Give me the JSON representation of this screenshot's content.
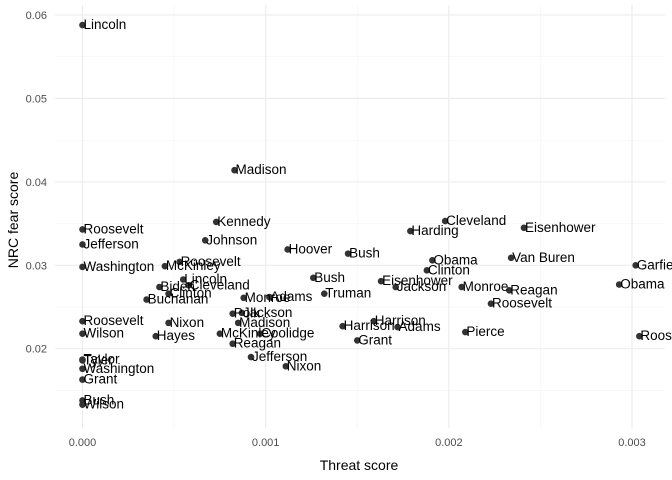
{
  "chart_data": {
    "type": "scatter",
    "xlabel": "Threat score",
    "ylabel": "NRC fear score",
    "xlim": [
      -0.00015,
      0.00318
    ],
    "ylim": [
      0.0105,
      0.0612
    ],
    "x_ticks": [
      0.0,
      0.001,
      0.002,
      0.003
    ],
    "x_tick_labels": [
      "0.000",
      "0.001",
      "0.002",
      "0.003"
    ],
    "y_ticks": [
      0.02,
      0.03,
      0.04,
      0.05,
      0.06
    ],
    "y_tick_labels": [
      "0.02",
      "0.03",
      "0.04",
      "0.05",
      "0.06"
    ],
    "grid": true,
    "point_color": "#333333",
    "points": [
      {
        "label": "Lincoln",
        "x": 0.0,
        "y": 0.0588
      },
      {
        "label": "Roosevelt",
        "x": 0.0,
        "y": 0.0343
      },
      {
        "label": "Jefferson",
        "x": 0.0,
        "y": 0.0325
      },
      {
        "label": "Washington",
        "x": 0.0,
        "y": 0.0298
      },
      {
        "label": "Roosevelt",
        "x": 0.0,
        "y": 0.0233
      },
      {
        "label": "Wilson",
        "x": 0.0,
        "y": 0.0218
      },
      {
        "label": "Taylor",
        "x": 0.0,
        "y": 0.0187
      },
      {
        "label": "Tyler",
        "x": 0.0,
        "y": 0.0186
      },
      {
        "label": "Washington",
        "x": 0.0,
        "y": 0.0176
      },
      {
        "label": "Grant",
        "x": 0.0,
        "y": 0.0163
      },
      {
        "label": "Bush",
        "x": 0.0,
        "y": 0.0138
      },
      {
        "label": "Wilson",
        "x": 0.0,
        "y": 0.0133
      },
      {
        "label": "Buchanan",
        "x": 0.00035,
        "y": 0.0259
      },
      {
        "label": "Biden",
        "x": 0.00042,
        "y": 0.0274
      },
      {
        "label": "Clinton",
        "x": 0.00047,
        "y": 0.0266
      },
      {
        "label": "McKinley",
        "x": 0.00045,
        "y": 0.0299
      },
      {
        "label": "Roosevelt",
        "x": 0.00053,
        "y": 0.0304
      },
      {
        "label": "Lincoln",
        "x": 0.00055,
        "y": 0.0283
      },
      {
        "label": "Cleveland",
        "x": 0.00058,
        "y": 0.0276
      },
      {
        "label": "Hayes",
        "x": 0.0004,
        "y": 0.0215
      },
      {
        "label": "Nixon",
        "x": 0.00047,
        "y": 0.0231
      },
      {
        "label": "Kennedy",
        "x": 0.00073,
        "y": 0.0352
      },
      {
        "label": "Johnson",
        "x": 0.00067,
        "y": 0.033
      },
      {
        "label": "Madison",
        "x": 0.00083,
        "y": 0.0414
      },
      {
        "label": "Monroe",
        "x": 0.00088,
        "y": 0.0261
      },
      {
        "label": "Polk",
        "x": 0.00082,
        "y": 0.0242
      },
      {
        "label": "Jackson",
        "x": 0.00087,
        "y": 0.0243
      },
      {
        "label": "Madison",
        "x": 0.00085,
        "y": 0.0231
      },
      {
        "label": "McKinley",
        "x": 0.00075,
        "y": 0.0218
      },
      {
        "label": "Coolidge",
        "x": 0.00097,
        "y": 0.0218
      },
      {
        "label": "Reagan",
        "x": 0.00082,
        "y": 0.0206
      },
      {
        "label": "Jefferson",
        "x": 0.00092,
        "y": 0.019
      },
      {
        "label": "Adams",
        "x": 0.00102,
        "y": 0.0262
      },
      {
        "label": "Hoover",
        "x": 0.00112,
        "y": 0.0319
      },
      {
        "label": "Bush",
        "x": 0.00126,
        "y": 0.0285
      },
      {
        "label": "Truman",
        "x": 0.00132,
        "y": 0.0266
      },
      {
        "label": "Nixon",
        "x": 0.00111,
        "y": 0.0179
      },
      {
        "label": "Bush",
        "x": 0.00145,
        "y": 0.0314
      },
      {
        "label": "Harrison",
        "x": 0.00142,
        "y": 0.0227
      },
      {
        "label": "Grant",
        "x": 0.0015,
        "y": 0.021
      },
      {
        "label": "Harrison",
        "x": 0.00159,
        "y": 0.0233
      },
      {
        "label": "Adams",
        "x": 0.00172,
        "y": 0.0226
      },
      {
        "label": "Eisenhower",
        "x": 0.00163,
        "y": 0.0281
      },
      {
        "label": "Jackson",
        "x": 0.00171,
        "y": 0.0274
      },
      {
        "label": "Harding",
        "x": 0.00179,
        "y": 0.0341
      },
      {
        "label": "Cleveland",
        "x": 0.00198,
        "y": 0.0353
      },
      {
        "label": "Obama",
        "x": 0.00191,
        "y": 0.0306
      },
      {
        "label": "Clinton",
        "x": 0.00188,
        "y": 0.0294
      },
      {
        "label": "Monroe",
        "x": 0.00207,
        "y": 0.0274
      },
      {
        "label": "Pierce",
        "x": 0.00209,
        "y": 0.022
      },
      {
        "label": "Eisenhower",
        "x": 0.00241,
        "y": 0.0345
      },
      {
        "label": "Van Buren",
        "x": 0.00234,
        "y": 0.0309
      },
      {
        "label": "Reagan",
        "x": 0.00233,
        "y": 0.027
      },
      {
        "label": "Roosevelt",
        "x": 0.00223,
        "y": 0.0254
      },
      {
        "label": "Garfield",
        "x": 0.00302,
        "y": 0.03
      },
      {
        "label": "Obama",
        "x": 0.00293,
        "y": 0.0277
      },
      {
        "label": "Roosevelt",
        "x": 0.00304,
        "y": 0.0215
      }
    ]
  }
}
